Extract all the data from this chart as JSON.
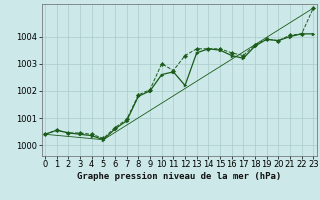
{
  "xlabel": "Graphe pression niveau de la mer (hPa)",
  "background_color": "#cce8e8",
  "grid_color": "#aacccc",
  "line_color": "#1a5c1a",
  "x_ticks": [
    0,
    1,
    2,
    3,
    4,
    5,
    6,
    7,
    8,
    9,
    10,
    11,
    12,
    13,
    14,
    15,
    16,
    17,
    18,
    19,
    20,
    21,
    22,
    23
  ],
  "xlim": [
    -0.3,
    23.3
  ],
  "ylim": [
    999.6,
    1005.2
  ],
  "yticks": [
    1000,
    1001,
    1002,
    1003,
    1004
  ],
  "series1_x": [
    0,
    1,
    2,
    3,
    4,
    5,
    6,
    7,
    8,
    9,
    10,
    11,
    12,
    13,
    14,
    15,
    16,
    17,
    18,
    19,
    20,
    21,
    22,
    23
  ],
  "series1_y": [
    1000.4,
    1000.55,
    1000.45,
    1000.45,
    1000.4,
    1000.25,
    1000.65,
    1000.95,
    1001.85,
    1002.05,
    1003.0,
    1002.75,
    1003.3,
    1003.55,
    1003.55,
    1003.55,
    1003.4,
    1003.3,
    1003.7,
    1003.9,
    1003.85,
    1004.05,
    1004.1,
    1005.05
  ],
  "series2_x": [
    0,
    1,
    2,
    3,
    4,
    5,
    6,
    7,
    8,
    9,
    10,
    11,
    12,
    13,
    14,
    15,
    16,
    17,
    18,
    19,
    20,
    21,
    22,
    23
  ],
  "series2_y": [
    1000.4,
    1000.55,
    1000.45,
    1000.4,
    1000.35,
    1000.2,
    1000.6,
    1000.9,
    1001.8,
    1002.0,
    1002.6,
    1002.7,
    1002.2,
    1003.4,
    1003.55,
    1003.5,
    1003.3,
    1003.2,
    1003.65,
    1003.9,
    1003.85,
    1004.0,
    1004.1,
    1004.1
  ],
  "series3_x": [
    0,
    5,
    23
  ],
  "series3_y": [
    1000.4,
    1000.2,
    1005.05
  ],
  "tick_fontsize": 6,
  "xlabel_fontsize": 6.5
}
